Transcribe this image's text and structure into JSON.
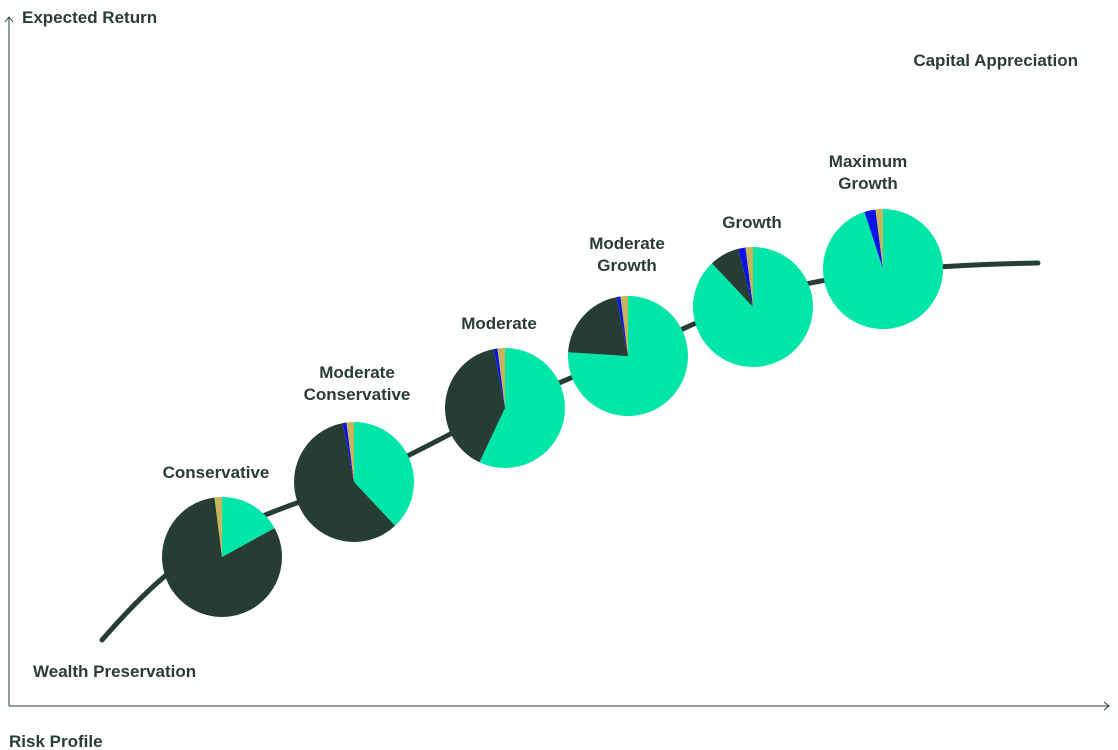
{
  "chart_data": {
    "type": "pie",
    "title": "",
    "ylabel": "Expected Return",
    "xlabel": "Risk Profile",
    "annotations": {
      "top_right": "Capital Appreciation",
      "bottom_left": "Wealth Preservation"
    },
    "slice_colors": [
      "#00e5a8",
      "#263d33",
      "#0a14e6",
      "#c8b45a"
    ],
    "portfolios": [
      {
        "label": "Conservative",
        "values": [
          17,
          81,
          0,
          2
        ]
      },
      {
        "label": "Moderate Conservative",
        "values": [
          38,
          59,
          1,
          2
        ]
      },
      {
        "label": "Moderate",
        "values": [
          57,
          40,
          1,
          2
        ]
      },
      {
        "label": "Moderate Growth",
        "values": [
          76,
          21,
          1,
          2
        ]
      },
      {
        "label": "Growth",
        "values": [
          88,
          8,
          2,
          2
        ]
      },
      {
        "label": "Maximum Growth",
        "values": [
          95,
          0,
          3,
          2
        ]
      }
    ],
    "curve_color": "#263d33",
    "grid": false
  }
}
